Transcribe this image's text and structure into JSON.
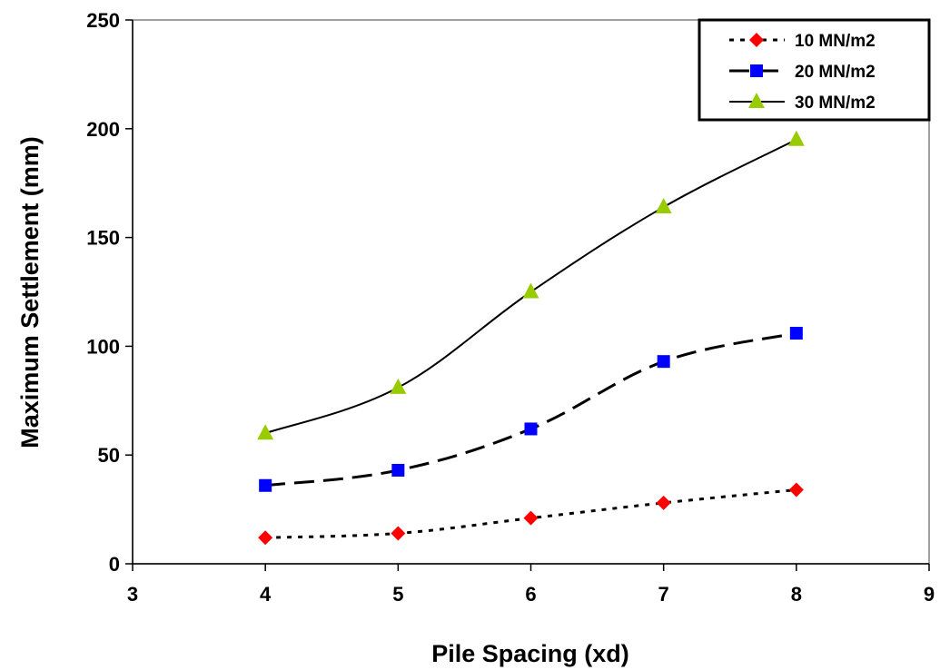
{
  "chart_data": {
    "type": "line",
    "title": "",
    "xlabel": "Pile Spacing (xd)",
    "ylabel": "Maximum Settlement (mm)",
    "xlim": [
      3,
      9
    ],
    "ylim": [
      0,
      250
    ],
    "x_ticks": [
      "3",
      "4",
      "5",
      "6",
      "7",
      "8",
      "9"
    ],
    "y_ticks": [
      "0",
      "50",
      "100",
      "150",
      "200",
      "250"
    ],
    "grid": false,
    "legend_position": "top-right",
    "x": [
      4,
      5,
      6,
      7,
      8
    ],
    "series": [
      {
        "name": "10 MN/m2",
        "values": [
          12,
          14,
          21,
          28,
          34
        ],
        "color": "#ff0000",
        "marker": "diamond",
        "line_style": "dotted",
        "line_color": "#000000"
      },
      {
        "name": "20 MN/m2",
        "values": [
          36,
          43,
          62,
          93,
          106
        ],
        "color": "#0000ff",
        "marker": "square",
        "line_style": "dashed",
        "line_color": "#000000"
      },
      {
        "name": "30 MN/m2",
        "values": [
          60,
          81,
          125,
          164,
          195
        ],
        "color": "#99cc00",
        "marker": "triangle",
        "line_style": "solid",
        "line_color": "#000000"
      }
    ]
  }
}
